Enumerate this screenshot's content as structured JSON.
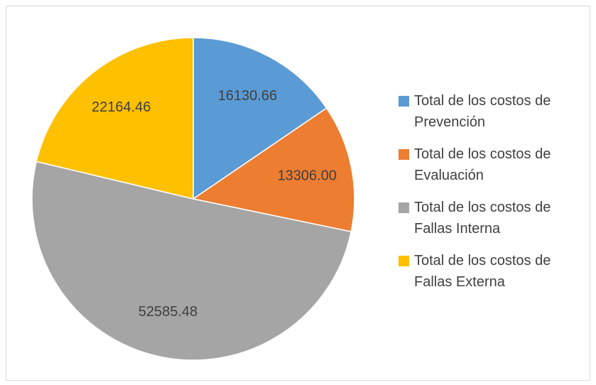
{
  "chart_data": {
    "type": "pie",
    "categories": [
      "Total de los costos de Prevención",
      "Total de los costos de Evaluación",
      "Total de los costos de Fallas Interna",
      "Total de los costos de Fallas Externa"
    ],
    "values": [
      16130.66,
      13306.0,
      52585.48,
      22164.46
    ],
    "value_labels": [
      "16130.66",
      "13306.00",
      "52585.48",
      "22164.46"
    ],
    "colors": [
      "#5b9bd5",
      "#ed7d31",
      "#a5a5a5",
      "#ffc000"
    ],
    "legend": "right"
  }
}
